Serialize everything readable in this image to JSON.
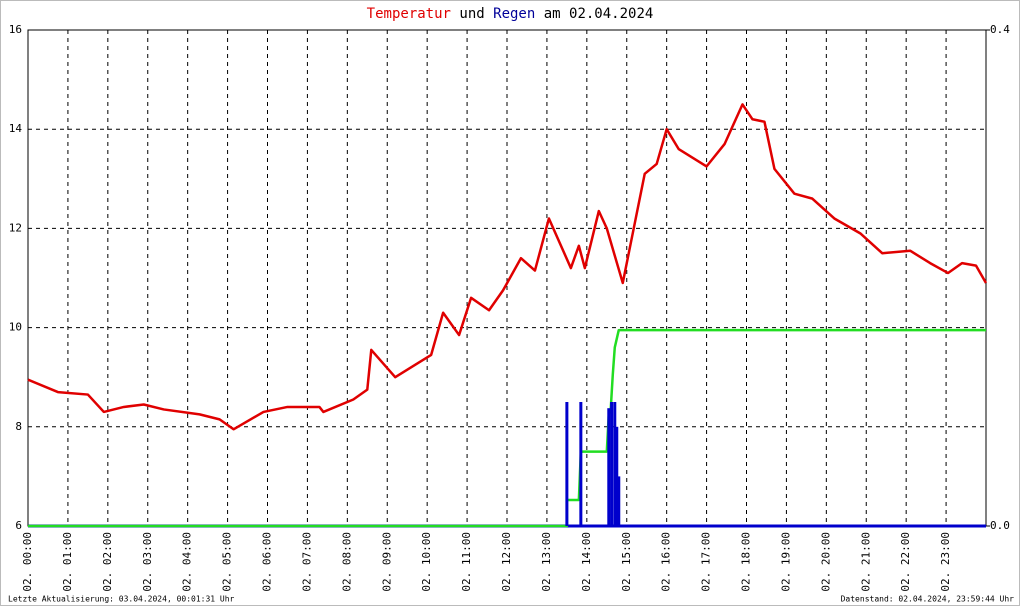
{
  "chart_data": {
    "type": "line",
    "title": [
      {
        "text": "Temperatur",
        "color": "#e00000"
      },
      {
        "text": "und",
        "color": "#000000"
      },
      {
        "text": "Regen",
        "color": "#000099"
      },
      {
        "text": "am 02.04.2024",
        "color": "#000000"
      }
    ],
    "xlim": [
      0,
      24
    ],
    "xticks": [
      {
        "value": 0,
        "label": "02. 00:00"
      },
      {
        "value": 1,
        "label": "02. 01:00"
      },
      {
        "value": 2,
        "label": "02. 02:00"
      },
      {
        "value": 3,
        "label": "02. 03:00"
      },
      {
        "value": 4,
        "label": "02. 04:00"
      },
      {
        "value": 5,
        "label": "02. 05:00"
      },
      {
        "value": 6,
        "label": "02. 06:00"
      },
      {
        "value": 7,
        "label": "02. 07:00"
      },
      {
        "value": 8,
        "label": "02. 08:00"
      },
      {
        "value": 9,
        "label": "02. 09:00"
      },
      {
        "value": 10,
        "label": "02. 10:00"
      },
      {
        "value": 11,
        "label": "02. 11:00"
      },
      {
        "value": 12,
        "label": "02. 12:00"
      },
      {
        "value": 13,
        "label": "02. 13:00"
      },
      {
        "value": 14,
        "label": "02. 14:00"
      },
      {
        "value": 15,
        "label": "02. 15:00"
      },
      {
        "value": 16,
        "label": "02. 16:00"
      },
      {
        "value": 17,
        "label": "02. 17:00"
      },
      {
        "value": 18,
        "label": "02. 18:00"
      },
      {
        "value": 19,
        "label": "02. 19:00"
      },
      {
        "value": 20,
        "label": "02. 20:00"
      },
      {
        "value": 21,
        "label": "02. 21:00"
      },
      {
        "value": 22,
        "label": "02. 22:00"
      },
      {
        "value": 23,
        "label": "02. 23:00"
      }
    ],
    "ylim": [
      6,
      16
    ],
    "yticks": [
      6,
      8,
      10,
      12,
      14,
      16
    ],
    "y2lim": [
      0,
      0.4
    ],
    "y2ticks": [
      {
        "value": 0,
        "label": "0.0"
      },
      0.4
    ],
    "grid": true,
    "series": [
      {
        "type": "line",
        "color": "#e00000",
        "x": [
          0,
          0.75,
          1.5,
          1.9,
          2.4,
          2.9,
          3.4,
          4.3,
          4.8,
          5.15,
          5.9,
          6.5,
          7.3,
          7.4,
          8.15,
          8.5,
          8.6,
          9.2,
          9.3,
          9.8,
          10.1,
          10.4,
          10.8,
          11.1,
          11.55,
          11.9,
          12.35,
          12.7,
          13.05,
          13.6,
          13.8,
          13.95,
          14.3,
          14.5,
          14.9,
          15.2,
          15.45,
          15.75,
          16.0,
          16.3,
          17.0,
          17.45,
          17.9,
          18.15,
          18.45,
          18.7,
          19.2,
          19.65,
          20.2,
          20.85,
          21.4,
          22.1,
          22.6,
          23.05,
          23.4,
          23.75,
          24
        ],
        "values": [
          8.95,
          8.7,
          8.65,
          8.3,
          8.4,
          8.45,
          8.35,
          8.25,
          8.15,
          7.95,
          8.3,
          8.4,
          8.4,
          8.3,
          8.55,
          8.75,
          9.55,
          9.0,
          9.05,
          9.3,
          9.45,
          10.3,
          9.85,
          10.6,
          10.35,
          10.75,
          11.4,
          11.15,
          12.2,
          11.2,
          11.65,
          11.2,
          12.35,
          12.0,
          10.9,
          12.1,
          13.1,
          13.3,
          14.0,
          13.6,
          13.25,
          13.7,
          14.5,
          14.2,
          14.15,
          13.2,
          12.7,
          12.6,
          12.2,
          11.9,
          11.5,
          11.55,
          11.3,
          11.1,
          11.3,
          11.25,
          10.9
        ]
      },
      {
        "type": "line",
        "axis": "y2",
        "color": "#22dd22",
        "x": [
          0,
          13.5,
          13.5,
          13.8,
          13.85,
          14.5,
          14.55,
          14.6,
          14.65,
          14.7,
          14.8,
          24
        ],
        "values": [
          0,
          0,
          0.021,
          0.021,
          0.06,
          0.06,
          0.09,
          0.095,
          0.122,
          0.144,
          0.158,
          0.158
        ]
      },
      {
        "type": "bar",
        "axis": "y2",
        "color": "#0000cc",
        "x": [
          13.5,
          13.85,
          14.55,
          14.62,
          14.7,
          14.75,
          14.8
        ],
        "values": [
          0.1,
          0.1,
          0.095,
          0.1,
          0.1,
          0.08,
          0.04
        ]
      }
    ]
  },
  "footer": {
    "left": "Letzte Aktualisierung: 03.04.2024, 00:01:31 Uhr",
    "right": "Datenstand: 02.04.2024, 23:59:44 Uhr"
  }
}
